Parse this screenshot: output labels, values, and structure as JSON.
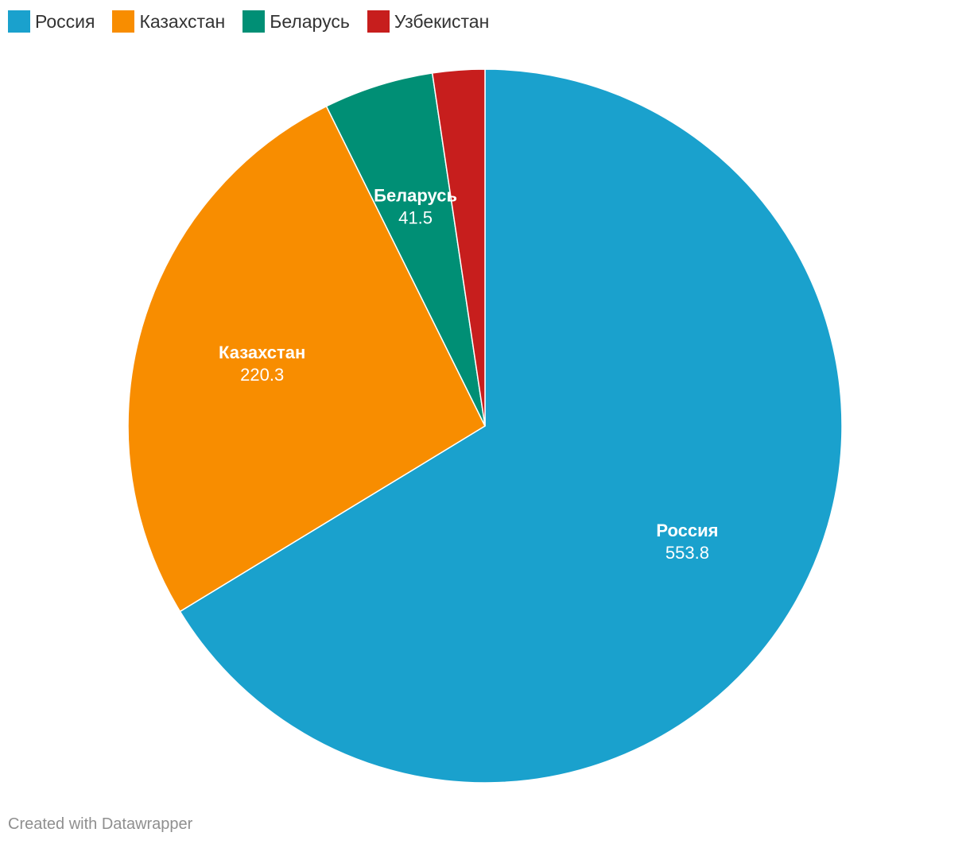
{
  "chart_data": {
    "type": "pie",
    "categories": [
      "Россия",
      "Казахстан",
      "Беларусь",
      "Узбекистан"
    ],
    "values": [
      553.8,
      220.3,
      41.5,
      19.7
    ],
    "colors": [
      "#1aa1cd",
      "#f88d00",
      "#008f75",
      "#c71e1d"
    ],
    "data_labels": [
      {
        "name": "Россия",
        "value": "553.8"
      },
      {
        "name": "Казахстан",
        "value": "220.3"
      },
      {
        "name": "Беларусь",
        "value": "41.5"
      }
    ],
    "legend": [
      "Россия",
      "Казахстан",
      "Беларусь",
      "Узбекистан"
    ],
    "legend_position": "top-left",
    "start_angle": "12 o'clock",
    "direction": "clockwise"
  },
  "footer": {
    "credit": "Created with Datawrapper"
  }
}
